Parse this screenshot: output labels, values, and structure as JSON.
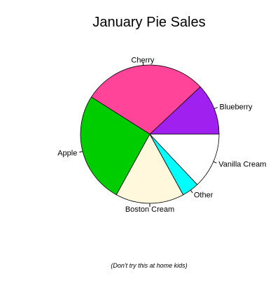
{
  "chart_data": {
    "type": "pie",
    "title": "January Pie Sales",
    "caption": "(Don't try this at home kids)",
    "start_angle_deg": 0,
    "direction": "counterclockwise",
    "slices": [
      {
        "label": "Blueberry",
        "value": 0.12,
        "color": "#a020f0"
      },
      {
        "label": "Cherry",
        "value": 0.29,
        "color": "#ff4499"
      },
      {
        "label": "Apple",
        "value": 0.26,
        "color": "#00cd00"
      },
      {
        "label": "Boston Cream",
        "value": 0.16,
        "color": "#fff8dc"
      },
      {
        "label": "Other",
        "value": 0.04,
        "color": "#00ffff"
      },
      {
        "label": "Vanilla Cream",
        "value": 0.13,
        "color": "#ffffff"
      }
    ]
  }
}
